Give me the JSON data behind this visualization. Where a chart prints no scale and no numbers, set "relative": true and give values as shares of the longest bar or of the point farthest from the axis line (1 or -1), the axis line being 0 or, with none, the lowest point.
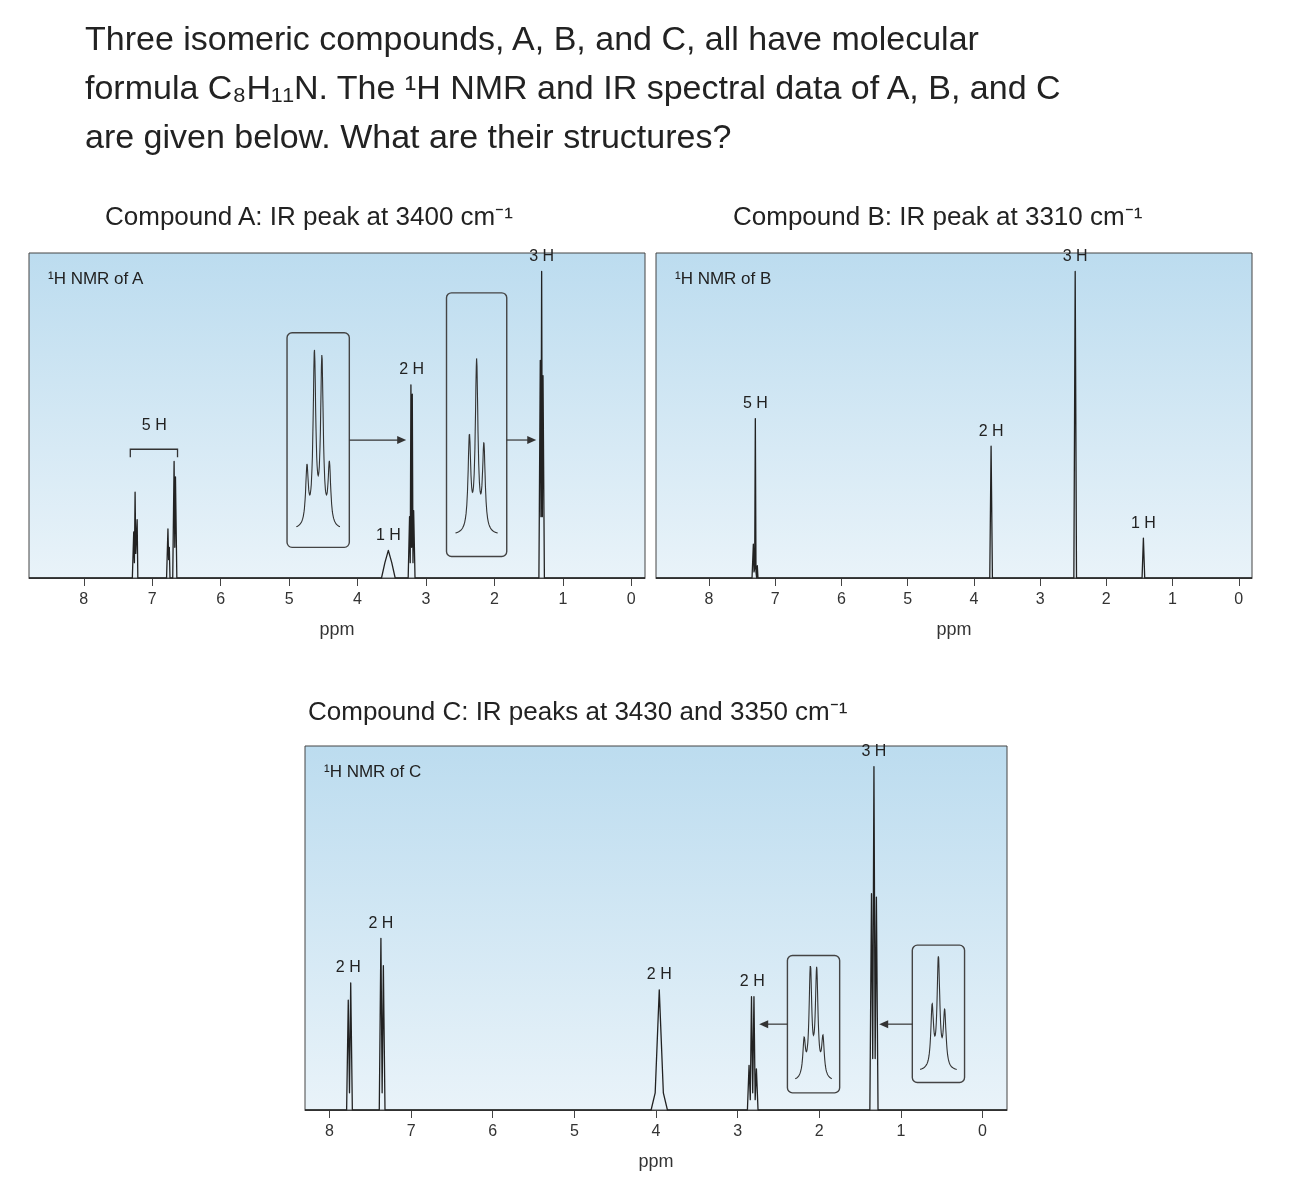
{
  "chart_data": [
    {
      "type": "line",
      "title": "Compound A: IR peak at 3400 cm⁻¹",
      "subtitle": "¹H NMR of A",
      "xlabel": "ppm",
      "relative": true,
      "xlim": [
        8.8,
        -0.2
      ],
      "xticks": [
        8,
        7,
        6,
        5,
        4,
        3,
        2,
        1,
        0
      ],
      "series": [
        {
          "color": "#222222",
          "x": [
            8.8,
            7.29,
            7.27,
            7.26,
            7.25,
            7.24,
            7.22,
            7.21,
            6.79,
            6.77,
            6.76,
            6.75,
            6.74,
            6.7,
            6.68,
            6.67,
            6.66,
            6.64,
            3.65,
            3.6,
            3.55,
            3.5,
            3.45,
            3.26,
            3.24,
            3.23,
            3.22,
            3.21,
            3.2,
            3.19,
            3.18,
            3.16,
            1.35,
            1.33,
            1.32,
            1.31,
            1.3,
            1.29,
            1.27,
            -0.2
          ],
          "values": [
            0,
            0,
            0.15,
            0.05,
            0.28,
            0.08,
            0.19,
            0,
            0,
            0.16,
            0.06,
            0.1,
            0,
            0,
            0.38,
            0.1,
            0.33,
            0,
            0,
            0.05,
            0.09,
            0.05,
            0,
            0,
            0.2,
            0.05,
            0.63,
            0.1,
            0.6,
            0.05,
            0.22,
            0,
            0,
            0.71,
            0.2,
            1,
            0.2,
            0.66,
            0,
            0
          ]
        }
      ],
      "annotations": [
        "Three isomeric compounds, A, B, and C, all have molecular formula C₈H₁₁N. The ¹H NMR and IR spectral data of A, B, and C are given below. What are their structures?",
        "5 H",
        {
          "text": "2 H",
          "x": 3.21,
          "y": 0.63
        },
        {
          "text": "1 H",
          "x": 3.55,
          "y": 0.09
        },
        {
          "text": "3 H",
          "x": 1.31,
          "y": 1
        }
      ]
    },
    {
      "type": "line",
      "title": "Compound B: IR peak at 3310 cm⁻¹",
      "subtitle": "¹H NMR of B",
      "xlabel": "ppm",
      "relative": true,
      "xlim": [
        8.8,
        -0.2
      ],
      "xticks": [
        8,
        7,
        6,
        5,
        4,
        3,
        2,
        1,
        0
      ],
      "series": [
        {
          "color": "#222222",
          "x": [
            8.8,
            7.35,
            7.33,
            7.32,
            7.31,
            7.3,
            7.29,
            7.28,
            7.27,
            7.26,
            3.76,
            3.74,
            3.72,
            2.49,
            2.47,
            2.45,
            1.46,
            1.44,
            1.42,
            -0.2
          ],
          "values": [
            0,
            0,
            0.11,
            0.02,
            0.03,
            0.52,
            0.02,
            0,
            0.04,
            0,
            0,
            0.43,
            0,
            0,
            1,
            0,
            0,
            0.13,
            0,
            0
          ]
        }
      ],
      "annotations": [
        {
          "text": "5 H",
          "x": 7.3,
          "y": 0.52
        },
        {
          "text": "2 H",
          "x": 3.74,
          "y": 0.43
        },
        {
          "text": "3 H",
          "x": 2.47,
          "y": 1
        },
        {
          "text": "1 H",
          "x": 1.44,
          "y": 0.13
        }
      ]
    },
    {
      "type": "line",
      "title": "Compound C: IR peaks at 3430 and 3350 cm⁻¹",
      "subtitle": "¹H NMR of C",
      "xlabel": "ppm",
      "relative": true,
      "xlim": [
        8.3,
        -0.3
      ],
      "xticks": [
        8,
        7,
        6,
        5,
        4,
        3,
        2,
        1,
        0
      ],
      "series": [
        {
          "color": "#222222",
          "x": [
            8.3,
            7.79,
            7.77,
            7.755,
            7.74,
            7.72,
            7.39,
            7.37,
            7.355,
            7.34,
            7.32,
            4.06,
            4.01,
            3.96,
            3.91,
            3.86,
            2.88,
            2.86,
            2.845,
            2.83,
            2.815,
            2.8,
            2.785,
            2.77,
            2.75,
            1.38,
            1.36,
            1.345,
            1.33,
            1.315,
            1.3,
            1.28,
            -0.3
          ],
          "values": [
            0,
            0,
            0.32,
            0.05,
            0.37,
            0,
            0,
            0.5,
            0.05,
            0.42,
            0,
            0,
            0.05,
            0.35,
            0.05,
            0,
            0,
            0.13,
            0.03,
            0.33,
            0.05,
            0.33,
            0.03,
            0.12,
            0,
            0,
            0.63,
            0.15,
            1,
            0.15,
            0.62,
            0,
            0
          ]
        }
      ],
      "annotations": [
        {
          "text": "2 H",
          "x": 7.77,
          "y": 0.37
        },
        {
          "text": "2 H",
          "x": 7.37,
          "y": 0.5
        },
        {
          "text": "2 H",
          "x": 3.96,
          "y": 0.35
        },
        {
          "text": "2 H",
          "x": 2.82,
          "y": 0.33
        },
        {
          "text": "3 H",
          "x": 1.33,
          "y": 1
        }
      ]
    }
  ]
}
